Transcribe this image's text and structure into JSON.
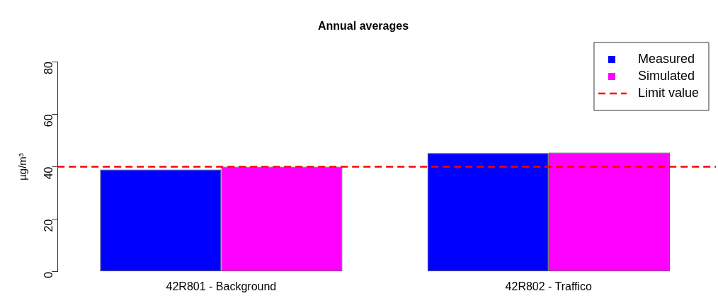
{
  "chart_data": {
    "type": "bar",
    "title": "Annual averages",
    "ylabel": "µg/m³",
    "categories": [
      "42R801 - Background",
      "42R802 - Traffico"
    ],
    "series": [
      {
        "name": "Measured",
        "color": "#0000ff",
        "values": [
          38.9,
          45.2
        ]
      },
      {
        "name": "Simulated",
        "color": "#ff00ff",
        "values": [
          40.0,
          45.4
        ]
      }
    ],
    "ylim": [
      0,
      80
    ],
    "yticks": [
      0,
      20,
      40,
      60,
      80
    ],
    "grid": false,
    "legend": "top right",
    "ref_lines": [
      {
        "axis": "y",
        "value": 40,
        "label": "Limit value",
        "color": "#ff0000",
        "line_style": "dashed"
      }
    ]
  }
}
